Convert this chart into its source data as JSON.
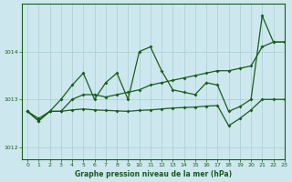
{
  "title": "Graphe pression niveau de la mer (hPa)",
  "bg_color": "#cce8ee",
  "grid_color": "#aaccd4",
  "line_color": "#1a5c1a",
  "xlim": [
    -0.5,
    23
  ],
  "ylim": [
    1011.75,
    1015.0
  ],
  "yticks": [
    1012,
    1013,
    1014
  ],
  "xticks": [
    0,
    1,
    2,
    3,
    4,
    5,
    6,
    7,
    8,
    9,
    10,
    11,
    12,
    13,
    14,
    15,
    16,
    17,
    18,
    19,
    20,
    21,
    22,
    23
  ],
  "series_volatile": [
    1012.75,
    1012.55,
    1012.75,
    1013.0,
    1013.3,
    1013.55,
    1013.0,
    1013.35,
    1013.55,
    1013.0,
    1014.0,
    1014.1,
    1013.6,
    1013.2,
    1013.15,
    1013.1,
    1013.35,
    1013.3,
    1012.75,
    1012.85,
    1013.0,
    1014.75,
    1014.2,
    1014.2
  ],
  "series_smooth": [
    1012.75,
    1012.6,
    1012.75,
    1012.75,
    1013.0,
    1013.1,
    1013.1,
    1013.05,
    1013.1,
    1013.15,
    1013.2,
    1013.3,
    1013.35,
    1013.4,
    1013.45,
    1013.5,
    1013.55,
    1013.6,
    1013.6,
    1013.65,
    1013.7,
    1014.1,
    1014.2,
    1014.2
  ],
  "series_low": [
    1012.75,
    1012.55,
    1012.75,
    1012.75,
    1012.78,
    1012.8,
    1012.78,
    1012.77,
    1012.76,
    1012.75,
    1012.77,
    1012.78,
    1012.8,
    1012.82,
    1012.83,
    1012.84,
    1012.86,
    1012.87,
    1012.45,
    1012.6,
    1012.78,
    1013.0,
    1013.0,
    1013.0
  ]
}
